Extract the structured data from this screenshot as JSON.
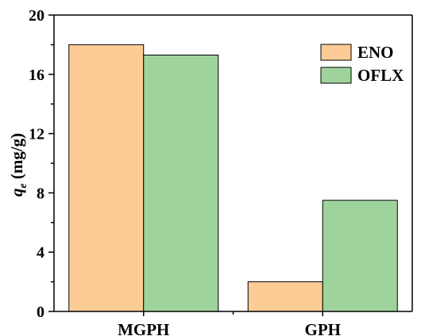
{
  "chart_data": {
    "type": "bar",
    "categories": [
      "MGPH",
      "GPH"
    ],
    "series": [
      {
        "name": "ENO",
        "values": [
          18.0,
          2.0
        ],
        "color": "#FDCC96"
      },
      {
        "name": "OFLX",
        "values": [
          17.3,
          7.5
        ],
        "color": "#9ED49C"
      }
    ],
    "ylim": [
      0,
      20
    ],
    "yticks": [
      "0",
      "4",
      "8",
      "12",
      "16",
      "20"
    ],
    "ylabel": {
      "symbol": "q",
      "subscript": "e",
      "unit": " (mg/g)"
    },
    "xlabel": "",
    "title": "",
    "legend_position": "top-right",
    "grid": false
  }
}
